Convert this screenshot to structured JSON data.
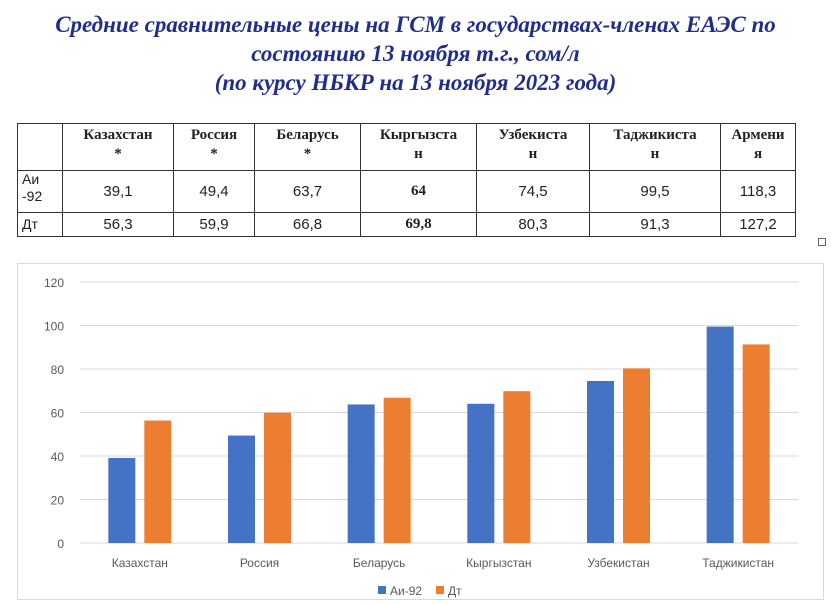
{
  "title": {
    "line1": "Средние сравнительные цены на ГСМ в государствах-членах ЕАЭС по",
    "line2": "состоянию 13 ноября т.г., сом/л",
    "line3": "(по курсу НБКР на 13 ноября 2023 года)"
  },
  "table": {
    "headers": [
      [
        "Казахстан",
        "*"
      ],
      [
        "Россия",
        "*"
      ],
      [
        "Беларусь",
        "*"
      ],
      [
        "Кыргызста",
        "н"
      ],
      [
        "Узбекиста",
        "н"
      ],
      [
        "Таджикиста",
        "н"
      ],
      [
        "Армени",
        "я"
      ]
    ],
    "rows": [
      {
        "label": [
          "Аи",
          "-92"
        ],
        "values": [
          "39,1",
          "49,4",
          "63,7",
          "64",
          "74,5",
          "99,5",
          "118,3"
        ]
      },
      {
        "label": [
          "Дт",
          ""
        ],
        "values": [
          "56,3",
          "59,9",
          "66,8",
          "69,8",
          "80,3",
          "91,3",
          "127,2"
        ]
      }
    ]
  },
  "chart_data": {
    "type": "bar",
    "categories": [
      "Казахстан",
      "Россия",
      "Беларусь",
      "Кыргызстан",
      "Узбекистан",
      "Таджикистан"
    ],
    "series": [
      {
        "name": "Аи-92",
        "values": [
          39.1,
          49.4,
          63.7,
          64,
          74.5,
          99.5
        ],
        "color": "#4472c4"
      },
      {
        "name": "Дт",
        "values": [
          56.3,
          59.9,
          66.8,
          69.8,
          80.3,
          91.3
        ],
        "color": "#ed7d31"
      }
    ],
    "ylim": [
      0,
      120
    ],
    "yticks": [
      "0",
      "20",
      "40",
      "60",
      "80",
      "100",
      "120"
    ],
    "grid": true,
    "legend": "bottom"
  }
}
